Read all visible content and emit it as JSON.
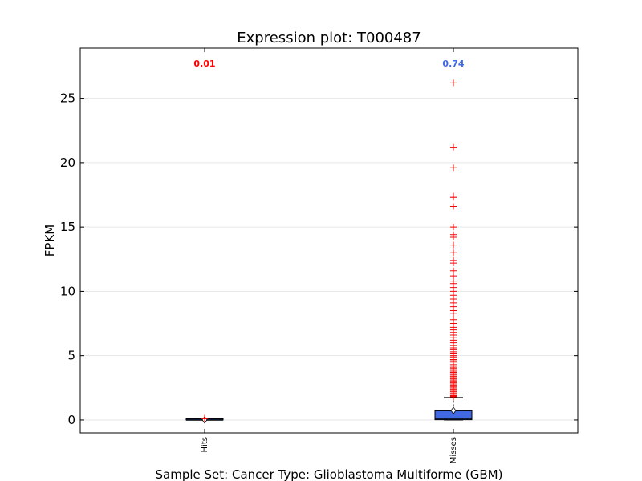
{
  "chart_data": {
    "type": "box",
    "title": "Expression plot: T000487",
    "xlabel": "Sample Set: Cancer Type: Glioblastoma Multiforme (GBM)",
    "ylabel": "FPKM",
    "ylim": [
      -1,
      28.9
    ],
    "yticks": [
      0,
      5,
      10,
      15,
      20,
      25
    ],
    "grid": "horizontal",
    "categories": [
      "Hits",
      "Misses"
    ],
    "series": [
      {
        "category": "Hits",
        "stat_label": "0.01",
        "stat_color": "#ff0000",
        "box_color": "#4169e1",
        "q1": 0.0,
        "median": 0.0,
        "q3": 0.01,
        "whisker_low": 0.0,
        "whisker_high": 0.02,
        "mean": 0.01,
        "outliers": [
          0.1,
          0.15
        ]
      },
      {
        "category": "Misses",
        "stat_label": "0.74",
        "stat_color": "#4169e1",
        "box_color": "#4169e1",
        "q1": 0.02,
        "median": 0.12,
        "q3": 0.72,
        "whisker_low": 0.0,
        "whisker_high": 1.75,
        "mean": 0.74,
        "outliers": [
          26.2,
          21.2,
          19.6,
          17.4,
          17.3,
          16.6,
          15.0,
          14.4,
          14.2,
          13.6,
          13.0,
          12.4,
          12.2,
          11.6,
          11.2,
          10.8,
          10.6,
          10.3,
          10.0,
          9.7,
          9.4,
          9.1,
          8.8,
          8.5,
          8.3,
          8.0,
          7.8,
          7.5,
          7.2,
          7.0,
          6.8,
          6.6,
          6.4,
          6.2,
          6.0,
          5.8,
          5.6,
          5.5,
          5.3,
          5.2,
          5.0,
          4.9,
          4.7,
          4.6,
          4.5,
          4.3,
          4.2,
          4.1,
          4.0,
          3.9,
          3.8,
          3.7,
          3.6,
          3.5,
          3.4,
          3.3,
          3.2,
          3.1,
          3.0,
          2.9,
          2.8,
          2.7,
          2.6,
          2.5,
          2.4,
          2.3,
          2.2,
          2.1,
          2.0,
          1.9,
          1.85,
          1.8
        ]
      }
    ],
    "outlier_color": "#ff0000"
  }
}
